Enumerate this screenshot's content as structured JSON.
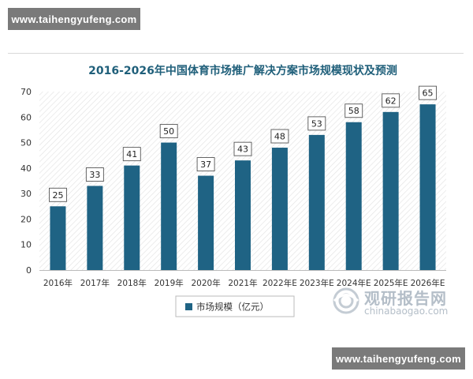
{
  "watermark": {
    "text": "www.taihengyufeng.com"
  },
  "logo": {
    "cn": "观研报告网",
    "en": "chinabaogao.com"
  },
  "colors": {
    "bar": "#1f6384",
    "title": "#1f5f7a",
    "axis_text": "#333333"
  },
  "chart_data": {
    "type": "bar",
    "title": "2016-2026年中国体育市场推广解决方案市场规模现状及预测",
    "categories": [
      "2016年",
      "2017年",
      "2018年",
      "2019年",
      "2020年",
      "2021年",
      "2022年E",
      "2023年E",
      "2024年E",
      "2025年E",
      "2026年E"
    ],
    "series": [
      {
        "name": "市场规模（亿元）",
        "values": [
          25,
          33,
          41,
          50,
          37,
          43,
          48,
          53,
          58,
          62,
          65
        ]
      }
    ],
    "ylim": [
      0,
      70
    ],
    "yticks": [
      0,
      10,
      20,
      30,
      40,
      50,
      60,
      70
    ],
    "xlabel": "",
    "ylabel": "",
    "legend_position": "bottom",
    "grid": false,
    "data_labels": true
  }
}
